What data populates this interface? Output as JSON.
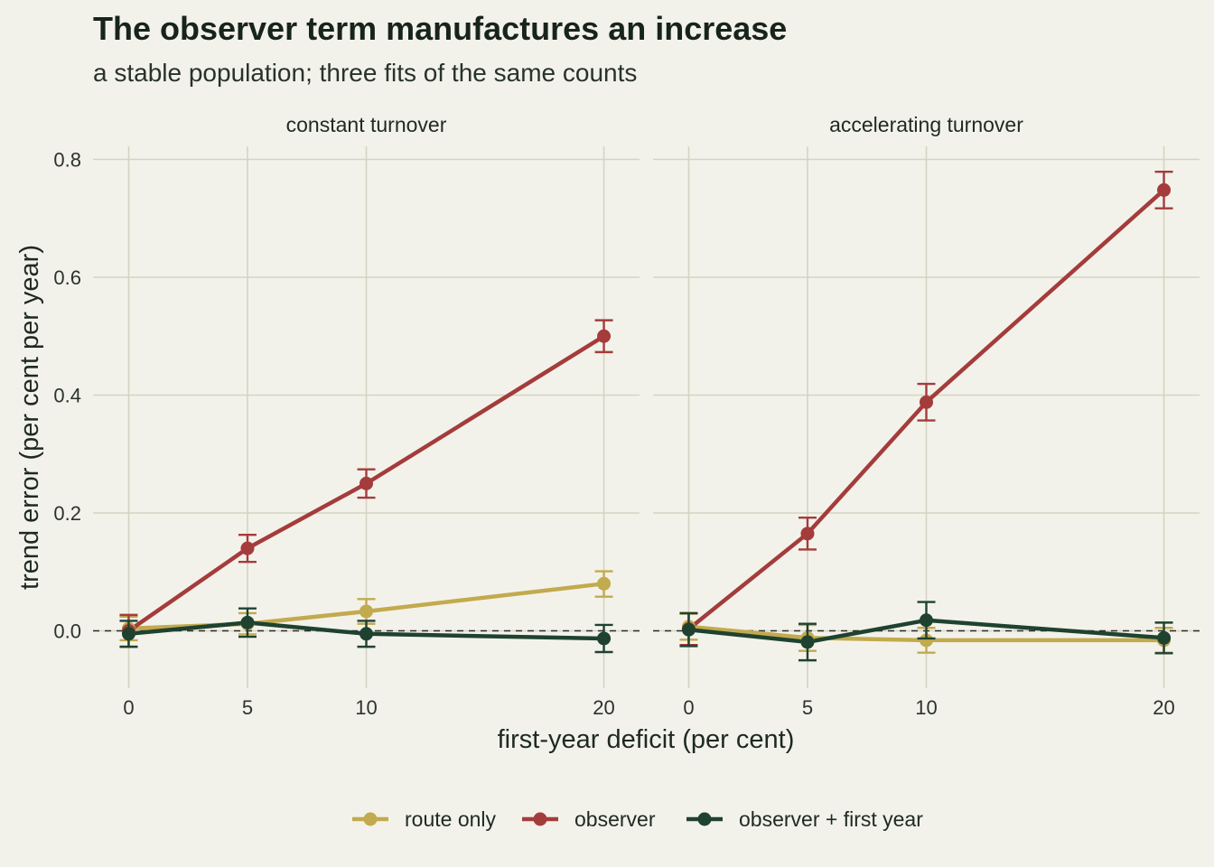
{
  "chart_data": {
    "type": "line",
    "title": "The observer term manufactures an increase",
    "subtitle": "a stable population; three fits of the same counts",
    "xlabel": "first-year deficit (per cent)",
    "ylabel": "trend error (per cent per year)",
    "x": [
      0,
      5,
      10,
      20
    ],
    "xticks": [
      "0",
      "5",
      "10",
      "20"
    ],
    "yticks": [
      "0.0",
      "0.2",
      "0.4",
      "0.6",
      "0.8"
    ],
    "ylim": [
      -0.095,
      0.82
    ],
    "xlim": [
      -1.5,
      21.5
    ],
    "grid": true,
    "reference_line": 0,
    "legend_position": "bottom",
    "legend": [
      "route only",
      "observer",
      "observer + first year"
    ],
    "colors": {
      "route only": "#c2aa4e",
      "observer": "#a43c3c",
      "observer + first year": "#1f4230",
      "grid": "#d5d4c3",
      "background": "#f3f2ea"
    },
    "panels": [
      {
        "label": "constant turnover",
        "series": [
          {
            "name": "route only",
            "values": [
              0.004,
              0.012,
              0.033,
              0.08
            ],
            "lower": [
              -0.016,
              -0.006,
              0.012,
              0.058
            ],
            "upper": [
              0.024,
              0.03,
              0.054,
              0.101
            ]
          },
          {
            "name": "observer",
            "values": [
              0.0,
              0.14,
              0.25,
              0.5
            ],
            "lower": [
              -0.027,
              0.117,
              0.226,
              0.473
            ],
            "upper": [
              0.027,
              0.163,
              0.274,
              0.527
            ]
          },
          {
            "name": "observer + first year",
            "values": [
              -0.005,
              0.014,
              -0.005,
              -0.013
            ],
            "lower": [
              -0.027,
              -0.01,
              -0.027,
              -0.036
            ],
            "upper": [
              0.017,
              0.038,
              0.017,
              0.01
            ]
          }
        ]
      },
      {
        "label": "accelerating turnover",
        "series": [
          {
            "name": "route only",
            "values": [
              0.007,
              -0.012,
              -0.016,
              -0.016
            ],
            "lower": [
              -0.015,
              -0.034,
              -0.037,
              -0.037
            ],
            "upper": [
              0.029,
              0.01,
              0.005,
              0.005
            ]
          },
          {
            "name": "observer",
            "values": [
              0.003,
              0.165,
              0.388,
              0.748
            ],
            "lower": [
              -0.024,
              0.138,
              0.357,
              0.717
            ],
            "upper": [
              0.03,
              0.192,
              0.419,
              0.779
            ]
          },
          {
            "name": "observer + first year",
            "values": [
              0.002,
              -0.019,
              0.018,
              -0.012
            ],
            "lower": [
              -0.026,
              -0.05,
              -0.013,
              -0.038
            ],
            "upper": [
              0.03,
              0.012,
              0.049,
              0.014
            ]
          }
        ]
      }
    ]
  }
}
